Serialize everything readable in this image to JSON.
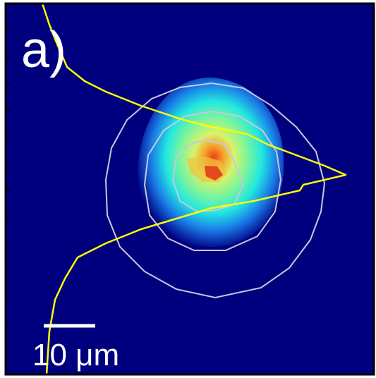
{
  "panel_label": "a)",
  "scale_bar": {
    "label": "10 μm"
  }
}
